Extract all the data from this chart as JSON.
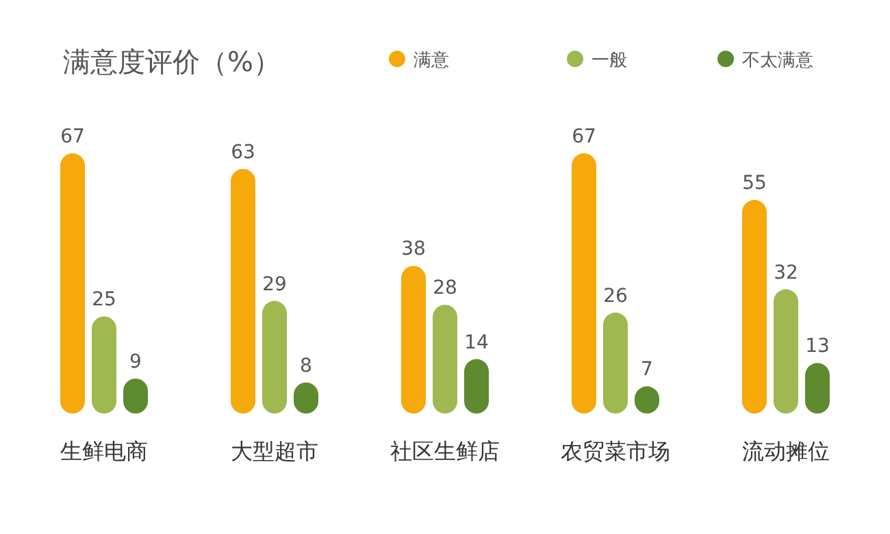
{
  "chart_data": {
    "type": "bar",
    "title": "满意度评价（%）",
    "categories": [
      "生鲜电商",
      "大型超市",
      "社区生鲜店",
      "农贸菜市场",
      "流动摊位"
    ],
    "series": [
      {
        "name": "满意",
        "color": "#f5a90a",
        "values": [
          67,
          63,
          38,
          67,
          55
        ]
      },
      {
        "name": "一般",
        "color": "#9fb850",
        "values": [
          25,
          29,
          28,
          26,
          32
        ]
      },
      {
        "name": "不太满意",
        "color": "#5e8a30",
        "values": [
          9,
          8,
          14,
          7,
          13
        ]
      }
    ],
    "data_labels": true,
    "legend": "top right"
  }
}
